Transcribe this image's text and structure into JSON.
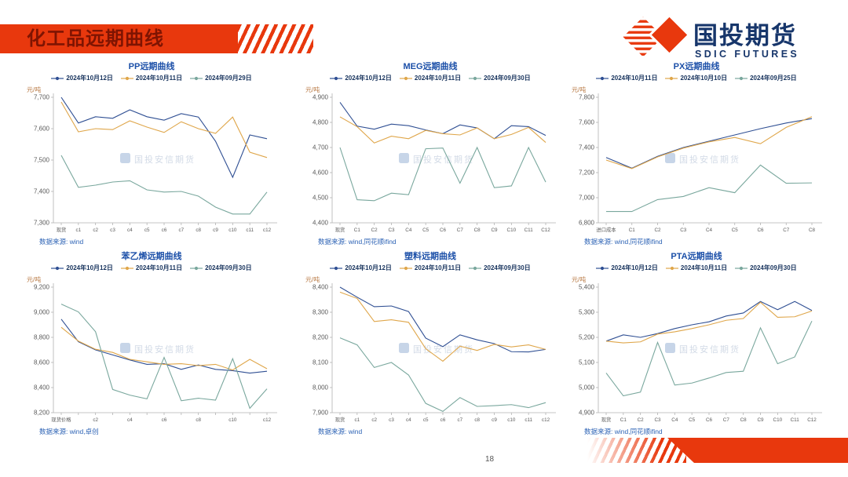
{
  "header": {
    "title": "化工品远期曲线",
    "accent_color": "#E8380D"
  },
  "logo": {
    "name": "国投期货",
    "subtitle": "SDIC FUTURES",
    "navy": "#17366B"
  },
  "watermark": "国投安信期货",
  "page_number": "18",
  "colors": {
    "series_blue": "#2F4F93",
    "series_orange": "#DFA64A",
    "series_teal": "#79A79D"
  },
  "chart_data": [
    {
      "type": "line",
      "title": "PP远期曲线",
      "unit": "元/吨",
      "source": "数据来源: wind",
      "ylim": [
        7300,
        7700
      ],
      "ytick_step": 100,
      "label_step": 1,
      "categories": [
        "现货",
        "c1",
        "c2",
        "c3",
        "c4",
        "c5",
        "c6",
        "c7",
        "c8",
        "c9",
        "c10",
        "c11",
        "c12"
      ],
      "series": [
        {
          "name": "2024年10月12日",
          "color": "#2F4F93",
          "values": [
            7700,
            7618,
            7638,
            7633,
            7660,
            7638,
            7627,
            7648,
            7637,
            7560,
            7445,
            7580,
            7568
          ]
        },
        {
          "name": "2024年10月11日",
          "color": "#DFA64A",
          "values": [
            7685,
            7590,
            7600,
            7597,
            7625,
            7605,
            7588,
            7622,
            7600,
            7585,
            7637,
            7525,
            7508
          ]
        },
        {
          "name": "2024年09月29日",
          "color": "#79A79D",
          "values": [
            7515,
            7413,
            7420,
            7430,
            7434,
            7405,
            7398,
            7400,
            7385,
            7350,
            7328,
            7328,
            7398
          ]
        }
      ]
    },
    {
      "type": "line",
      "title": "MEG远期曲线",
      "unit": "元/吨",
      "source": "数据来源: wind,同花顺ifind",
      "ylim": [
        4400,
        4900
      ],
      "ytick_step": 100,
      "label_step": 1,
      "categories": [
        "现货",
        "C1",
        "C2",
        "C3",
        "C4",
        "C5",
        "C6",
        "C7",
        "C8",
        "C9",
        "C10",
        "C11",
        "C12"
      ],
      "series": [
        {
          "name": "2024年10月12日",
          "color": "#2F4F93",
          "values": [
            4880,
            4785,
            4773,
            4793,
            4787,
            4770,
            4755,
            4790,
            4778,
            4735,
            4787,
            4783,
            4748
          ]
        },
        {
          "name": "2024年10月11日",
          "color": "#DFA64A",
          "values": [
            4822,
            4783,
            4718,
            4745,
            4735,
            4768,
            4755,
            4750,
            4778,
            4735,
            4752,
            4780,
            4720
          ]
        },
        {
          "name": "2024年09月30日",
          "color": "#79A79D",
          "values": [
            4700,
            4492,
            4488,
            4518,
            4512,
            4695,
            4698,
            4558,
            4700,
            4540,
            4547,
            4700,
            4562
          ]
        }
      ]
    },
    {
      "type": "line",
      "title": "PX远期曲线",
      "unit": "元/吨",
      "source": "数据来源: wind,同花顺ifind",
      "ylim": [
        6800,
        7800
      ],
      "ytick_step": 200,
      "label_step": 1,
      "categories": [
        "进口成本",
        "C1",
        "C2",
        "C3",
        "C4",
        "C5",
        "C6",
        "C7",
        "C8"
      ],
      "series": [
        {
          "name": "2024年10月11日",
          "color": "#2F4F93",
          "values": [
            7320,
            7235,
            7330,
            7400,
            7450,
            7500,
            7550,
            7595,
            7630
          ]
        },
        {
          "name": "2024年10月10日",
          "color": "#DFA64A",
          "values": [
            7300,
            7232,
            7325,
            7395,
            7445,
            7480,
            7430,
            7560,
            7645
          ]
        },
        {
          "name": "2024年09月25日",
          "color": "#79A79D",
          "values": [
            6890,
            6890,
            6985,
            7010,
            7080,
            7040,
            7260,
            7115,
            7118
          ]
        }
      ]
    },
    {
      "type": "line",
      "title": "苯乙烯远期曲线",
      "unit": "元/吨",
      "source": "数据来源: wind,卓创",
      "ylim": [
        8200,
        9200
      ],
      "ytick_step": 200,
      "label_step": 2,
      "categories": [
        "现货价格",
        "c1",
        "c2",
        "c3",
        "c4",
        "c5",
        "c6",
        "c7",
        "c8",
        "c9",
        "c10",
        "c11",
        "c12"
      ],
      "series": [
        {
          "name": "2024年10月12日",
          "color": "#2F4F93",
          "values": [
            8945,
            8765,
            8700,
            8660,
            8620,
            8585,
            8590,
            8545,
            8580,
            8545,
            8535,
            8515,
            8530
          ]
        },
        {
          "name": "2024年10月11日",
          "color": "#DFA64A",
          "values": [
            8880,
            8770,
            8705,
            8680,
            8625,
            8605,
            8585,
            8590,
            8575,
            8585,
            8540,
            8625,
            8550
          ]
        },
        {
          "name": "2024年09月30日",
          "color": "#79A79D",
          "values": [
            9065,
            9003,
            8845,
            8385,
            8340,
            8310,
            8640,
            8295,
            8315,
            8300,
            8630,
            8235,
            8390
          ]
        }
      ]
    },
    {
      "type": "line",
      "title": "塑料远期曲线",
      "unit": "元/吨",
      "source": "数据来源: wind",
      "ylim": [
        7900,
        8400
      ],
      "ytick_step": 100,
      "label_step": 1,
      "categories": [
        "现货",
        "c1",
        "c2",
        "c3",
        "c4",
        "c5",
        "c6",
        "c7",
        "c8",
        "c9",
        "c10",
        "c11",
        "c12"
      ],
      "series": [
        {
          "name": "2024年10月12日",
          "color": "#2F4F93",
          "values": [
            8400,
            8360,
            8322,
            8325,
            8303,
            8197,
            8163,
            8210,
            8190,
            8175,
            8143,
            8142,
            8152
          ]
        },
        {
          "name": "2024年10月11日",
          "color": "#DFA64A",
          "values": [
            8380,
            8355,
            8263,
            8270,
            8260,
            8155,
            8105,
            8165,
            8148,
            8172,
            8162,
            8170,
            8152
          ]
        },
        {
          "name": "2024年09月30日",
          "color": "#79A79D",
          "values": [
            8198,
            8170,
            8080,
            8100,
            8050,
            7937,
            7905,
            7960,
            7925,
            7928,
            7932,
            7920,
            7940
          ]
        }
      ]
    },
    {
      "type": "line",
      "title": "PTA远期曲线",
      "unit": "元/吨",
      "source": "数据来源: wind,同花顺ifind",
      "ylim": [
        4900,
        5400
      ],
      "ytick_step": 100,
      "label_step": 1,
      "categories": [
        "现货",
        "C1",
        "C2",
        "C3",
        "C4",
        "C5",
        "C6",
        "C7",
        "C8",
        "C9",
        "C10",
        "C11",
        "C12"
      ],
      "series": [
        {
          "name": "2024年10月12日",
          "color": "#2F4F93",
          "values": [
            5185,
            5210,
            5200,
            5215,
            5235,
            5250,
            5262,
            5285,
            5297,
            5343,
            5310,
            5343,
            5307
          ]
        },
        {
          "name": "2024年10月11日",
          "color": "#DFA64A",
          "values": [
            5185,
            5178,
            5182,
            5213,
            5222,
            5235,
            5250,
            5268,
            5275,
            5340,
            5280,
            5282,
            5305
          ]
        },
        {
          "name": "2024年09月30日",
          "color": "#79A79D",
          "values": [
            5058,
            4967,
            4982,
            5180,
            5010,
            5018,
            5038,
            5060,
            5065,
            5238,
            5095,
            5122,
            5265
          ]
        }
      ]
    }
  ]
}
